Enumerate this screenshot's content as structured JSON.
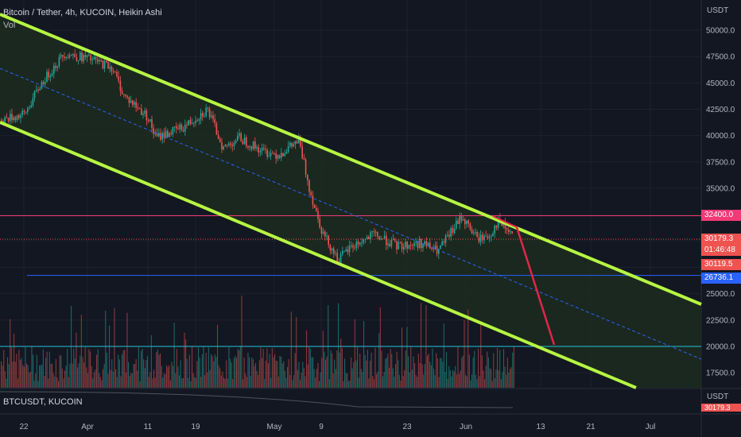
{
  "header": {
    "title": "Bitcoin / Tether, 4h, KUCOIN, Heikin Ashi",
    "indicator": "Vol"
  },
  "price_axis": {
    "currency": "USDT",
    "tick_labels": [
      "50000.0",
      "47500.0",
      "45000.0",
      "42500.0",
      "40000.0",
      "37500.0",
      "35000.0",
      "32500.0",
      "30000.0",
      "27500.0",
      "25000.0",
      "22500.0",
      "20000.0",
      "17500.0"
    ]
  },
  "time_axis": {
    "tick_labels": [
      "22",
      "Apr",
      "11",
      "19",
      "May",
      "9",
      "23",
      "Jun",
      "13",
      "21",
      "Jul"
    ]
  },
  "badges": {
    "resistance": "32400.0",
    "last_price": "30179.3",
    "countdown": "01:46:48",
    "bid": "30119.5",
    "support": "26736.1"
  },
  "lower_pane": {
    "label": "BTCUSDT, KUCOIN",
    "currency": "USDT",
    "badge_value": "30179.3"
  },
  "colors": {
    "background": "#131722",
    "up": "#26a69a",
    "down": "#ef5350",
    "channel": "#b6f542",
    "channel_fill": "#1d2b1e",
    "resistance": "#f23a76",
    "support": "#2962ff",
    "target": "#20c4d8",
    "projection": "#e0264a"
  },
  "chart_data": {
    "type": "candlestick",
    "title": "Bitcoin / Tether, 4h, KUCOIN, Heikin Ashi",
    "x_ticks": [
      "22",
      "Apr",
      "11",
      "19",
      "May",
      "9",
      "23",
      "Jun",
      "13",
      "21",
      "Jul"
    ],
    "ylim": [
      15500,
      52000
    ],
    "y_ticks": [
      50000,
      47500,
      45000,
      42500,
      40000,
      37500,
      35000,
      32500,
      30000,
      27500,
      25000,
      22500,
      20000,
      17500
    ],
    "price_path": [
      [
        0,
        41500
      ],
      [
        30,
        42000
      ],
      [
        50,
        44800
      ],
      [
        80,
        47800
      ],
      [
        110,
        47300
      ],
      [
        140,
        46500
      ],
      [
        155,
        43800
      ],
      [
        185,
        41800
      ],
      [
        195,
        39800
      ],
      [
        230,
        40800
      ],
      [
        260,
        42500
      ],
      [
        280,
        38800
      ],
      [
        300,
        39800
      ],
      [
        330,
        38500
      ],
      [
        350,
        38200
      ],
      [
        375,
        39500
      ],
      [
        390,
        34500
      ],
      [
        405,
        30800
      ],
      [
        425,
        28200
      ],
      [
        440,
        29400
      ],
      [
        470,
        30600
      ],
      [
        500,
        29500
      ],
      [
        530,
        29800
      ],
      [
        550,
        29000
      ],
      [
        570,
        31200
      ],
      [
        580,
        32300
      ],
      [
        600,
        30200
      ],
      [
        615,
        30500
      ],
      [
        625,
        31800
      ],
      [
        645,
        30500
      ]
    ],
    "horizontal_levels": [
      {
        "label": "32400.0",
        "value": 32400
      },
      {
        "label": "26736.1",
        "value": 26736.1
      },
      {
        "label": "20000.0",
        "value": 20000
      }
    ],
    "last_price": 30179.3,
    "grid": true
  }
}
